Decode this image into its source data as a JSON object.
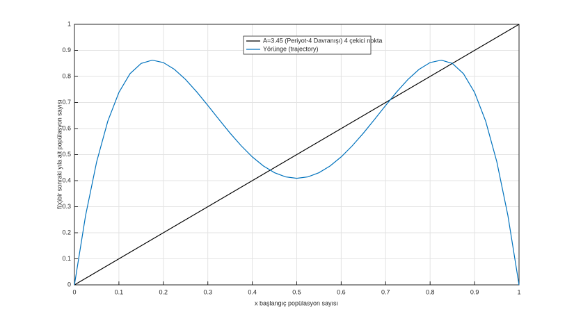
{
  "chart_data": {
    "type": "line",
    "xlabel": "x başlangıç popülasyon sayısı",
    "ylabel": "f(x)bir sonraki yıla ait popülasyon sayısı",
    "x": [
      0,
      0.025,
      0.05,
      0.075,
      0.1,
      0.125,
      0.15,
      0.175,
      0.2,
      0.225,
      0.25,
      0.275,
      0.3,
      0.325,
      0.35,
      0.375,
      0.4,
      0.425,
      0.45,
      0.475,
      0.5,
      0.525,
      0.55,
      0.575,
      0.6,
      0.625,
      0.65,
      0.675,
      0.7,
      0.725,
      0.75,
      0.775,
      0.8,
      0.825,
      0.85,
      0.875,
      0.9,
      0.925,
      0.95,
      0.975,
      1
    ],
    "series": [
      {
        "name": "A=3.45 (Periyot-4 Davranışı) 4 çekici nokta",
        "color": "#000000",
        "values": [
          0,
          0.025,
          0.05,
          0.075,
          0.1,
          0.125,
          0.15,
          0.175,
          0.2,
          0.225,
          0.25,
          0.275,
          0.3,
          0.325,
          0.35,
          0.375,
          0.4,
          0.425,
          0.45,
          0.475,
          0.5,
          0.525,
          0.55,
          0.575,
          0.6,
          0.625,
          0.65,
          0.675,
          0.7,
          0.725,
          0.75,
          0.775,
          0.8,
          0.825,
          0.85,
          0.875,
          0.9,
          0.925,
          0.95,
          0.975,
          1
        ]
      },
      {
        "name": "Yörünge (trajectory)",
        "color": "#0072bd",
        "values": [
          0,
          0.2657,
          0.4727,
          0.6281,
          0.7386,
          0.8106,
          0.85,
          0.8625,
          0.8532,
          0.8269,
          0.7881,
          0.7408,
          0.6886,
          0.6349,
          0.5825,
          0.534,
          0.4913,
          0.4564,
          0.4305,
          0.4145,
          0.4091,
          0.4145,
          0.4305,
          0.4564,
          0.4913,
          0.534,
          0.5825,
          0.6349,
          0.6886,
          0.7408,
          0.7881,
          0.8269,
          0.8532,
          0.8625,
          0.85,
          0.8106,
          0.7386,
          0.6281,
          0.4727,
          0.2657,
          0
        ]
      }
    ],
    "xlim": [
      0,
      1
    ],
    "ylim": [
      0,
      1
    ],
    "xticks": [
      0,
      0.1,
      0.2,
      0.3,
      0.4,
      0.5,
      0.6,
      0.7,
      0.8,
      0.9,
      1
    ],
    "yticks": [
      0,
      0.1,
      0.2,
      0.3,
      0.4,
      0.5,
      0.6,
      0.7,
      0.8,
      0.9,
      1
    ],
    "grid": true,
    "legend": "top"
  }
}
